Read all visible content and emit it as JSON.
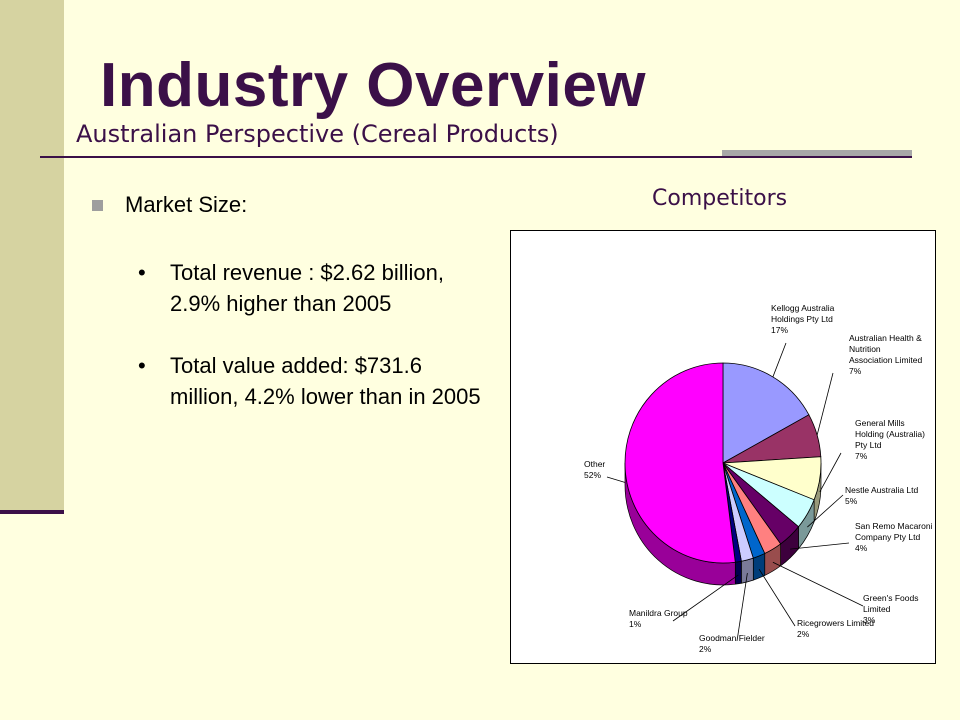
{
  "slide": {
    "title": "Industry Overview",
    "subtitle": "Australian Perspective (Cereal Products)",
    "market_heading": "Market Size:",
    "bullets": [
      "Total revenue : $2.62 billion, 2.9% higher than 2005",
      "Total value added: $731.6 million, 4.2% lower than in 2005"
    ],
    "chart_heading": "Competitors"
  },
  "chart_data": {
    "type": "pie",
    "style": "3d",
    "slices": [
      {
        "label": [
          "Kellogg Australia",
          "Holdings Pty Ltd",
          "17%"
        ],
        "value": 17,
        "color": "#9999FF",
        "side": "#5C5C99"
      },
      {
        "label": [
          "Australian Health &",
          "Nutrition",
          "Association Limited",
          "7%"
        ],
        "value": 7,
        "color": "#993366",
        "side": "#5C1F3D"
      },
      {
        "label": [
          "General Mills",
          "Holding (Australia)",
          "Pty Ltd",
          "7%"
        ],
        "value": 7,
        "color": "#FFFFCC",
        "side": "#99997A"
      },
      {
        "label": [
          "Nestle Australia Ltd",
          "5%"
        ],
        "value": 5,
        "color": "#CCFFFF",
        "side": "#7A9999"
      },
      {
        "label": [
          "San Remo Macaroni",
          "Company Pty Ltd",
          "4%"
        ],
        "value": 4,
        "color": "#660066",
        "side": "#3D003D"
      },
      {
        "label": [
          "Green's Foods",
          "Limited",
          "3%"
        ],
        "value": 3,
        "color": "#FF8080",
        "side": "#994D4D"
      },
      {
        "label": [
          "Ricegrowers Limited",
          "2%"
        ],
        "value": 2,
        "color": "#0066CC",
        "side": "#003D7A"
      },
      {
        "label": [
          "Goodman Fielder",
          "2%"
        ],
        "value": 2,
        "color": "#CCCCFF",
        "side": "#7A7A99"
      },
      {
        "label": [
          "Manildra Group",
          "1%"
        ],
        "value": 1,
        "color": "#000080",
        "side": "#00004D"
      },
      {
        "label": [
          "Other",
          "52%"
        ],
        "value": 52,
        "color": "#FF00FF",
        "side": "#990099"
      }
    ]
  }
}
